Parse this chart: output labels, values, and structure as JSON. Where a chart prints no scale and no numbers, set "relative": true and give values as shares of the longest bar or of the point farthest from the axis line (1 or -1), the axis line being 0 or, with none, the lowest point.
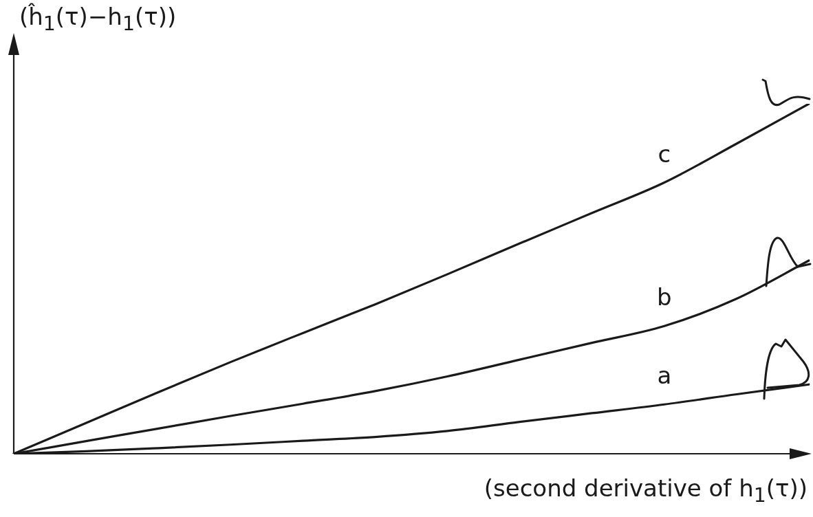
{
  "chart_data": {
    "type": "line",
    "relative": true,
    "xlabel": "(second derivative of h$_{1}$(τ))",
    "ylabel": "(ĥ$_{1}$(τ)−h$_{1}$(τ))",
    "categories": [
      null,
      null,
      null,
      null,
      null,
      null,
      null,
      null,
      null,
      null,
      null,
      null
    ],
    "series": [
      {
        "name": "a",
        "color": "#1a1a1a",
        "values": [
          0,
          0.007,
          0.016,
          0.026,
          0.037,
          0.048,
          0.065,
          0.091,
          0.116,
          0.141,
          0.17,
          0.198
        ]
      },
      {
        "name": "b",
        "color": "#1a1a1a",
        "values": [
          0,
          0.036,
          0.072,
          0.108,
          0.143,
          0.179,
          0.221,
          0.269,
          0.317,
          0.365,
          0.443,
          0.552
        ]
      },
      {
        "name": "c",
        "color": "#1a1a1a",
        "values": [
          0,
          0.088,
          0.176,
          0.262,
          0.345,
          0.427,
          0.513,
          0.601,
          0.688,
          0.775,
          0.886,
          1.0
        ]
      }
    ],
    "marker": "none",
    "line_style": "solid"
  }
}
